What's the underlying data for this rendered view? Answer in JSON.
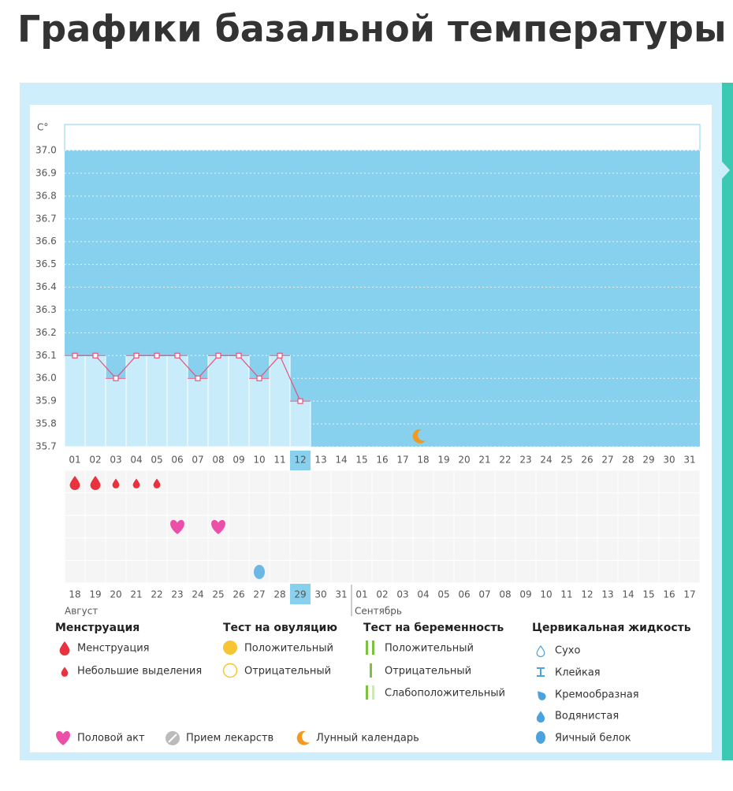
{
  "page_title": "Графики базальной температуры",
  "chart_data": {
    "type": "line",
    "y_axis_label": "C°",
    "categories": [
      "01",
      "02",
      "03",
      "04",
      "05",
      "06",
      "07",
      "08",
      "09",
      "10",
      "11",
      "12",
      "13",
      "14",
      "15",
      "16",
      "17",
      "18",
      "19",
      "20",
      "21",
      "22",
      "23",
      "24",
      "25",
      "26",
      "27",
      "28",
      "29",
      "30",
      "31"
    ],
    "values": [
      36.1,
      36.1,
      36.0,
      36.1,
      36.1,
      36.1,
      36.0,
      36.1,
      36.1,
      36.0,
      36.1,
      35.9,
      null,
      null,
      null,
      null,
      null,
      null,
      null,
      null,
      null,
      null,
      null,
      null,
      null,
      null,
      null,
      null,
      null,
      null,
      null
    ],
    "color": "#e8507a",
    "ylim": [
      35.7,
      37.0
    ],
    "yticks": [
      35.7,
      35.8,
      35.9,
      {
        "value": 36.0,
        "label": "36.0"
      },
      36.1,
      36.2,
      36.3,
      36.4,
      36.5,
      36.6,
      36.7,
      36.8,
      36.9,
      {
        "value": 37.0,
        "label": "37.0"
      }
    ],
    "current_index": 11,
    "dates": [
      "18",
      "19",
      "20",
      "21",
      "22",
      "23",
      "24",
      "25",
      "26",
      "27",
      "28",
      "29",
      "30",
      "31",
      "01",
      "02",
      "03",
      "04",
      "05",
      "06",
      "07",
      "08",
      "09",
      "10",
      "11",
      "12",
      "13",
      "14",
      "15",
      "16",
      "17"
    ],
    "weekend_indices": [
      3,
      4,
      10,
      17,
      18,
      24,
      25
    ],
    "months": [
      {
        "label": "Август",
        "start": 0
      },
      {
        "label": "Сентябрь",
        "start": 14
      }
    ],
    "menstruation_heavy": [
      0,
      1
    ],
    "menstruation_light": [
      2,
      3,
      4
    ],
    "intercourse": [
      5,
      7
    ],
    "cervical_egg_white": [
      9
    ],
    "lunar": [
      17
    ]
  },
  "legend": {
    "groups": [
      {
        "title": "Менструация",
        "items": [
          "Менструация",
          "Небольшие выделения"
        ]
      },
      {
        "title": "Тест на овуляцию",
        "items": [
          "Положительный",
          "Отрицательный"
        ]
      },
      {
        "title": "Тест на беременность",
        "items": [
          "Положительный",
          "Отрицательный",
          "Слабоположительный"
        ]
      },
      {
        "title": "Цервикальная жидкость",
        "items": [
          "Сухо",
          "Клейкая",
          "Кремообразная",
          "Водянистая",
          "Яичный белок"
        ]
      }
    ],
    "extra": [
      "Половой акт",
      "Прием лекарств",
      "Лунный календарь"
    ]
  }
}
